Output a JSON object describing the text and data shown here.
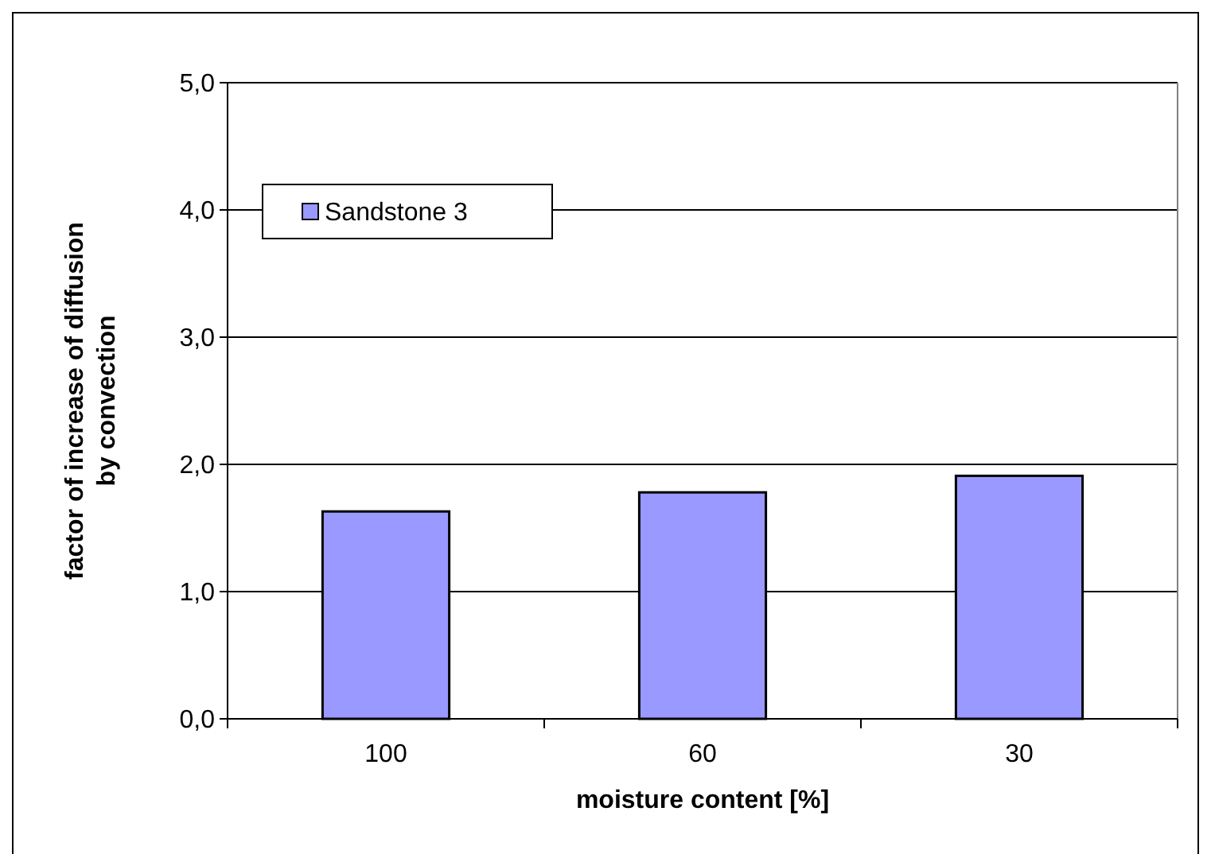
{
  "chart_data": {
    "type": "bar",
    "xlabel": "moisture content [%]",
    "ylabel": "factor of increase of diffusion by convection",
    "categories": [
      "100",
      "60",
      "30"
    ],
    "series": [
      {
        "name": "Sandstone 3",
        "color": "#9999ff",
        "values": [
          1.63,
          1.78,
          1.91
        ]
      }
    ],
    "ylim": [
      0,
      5
    ],
    "yticks": [
      {
        "value": 0,
        "label": "0,0"
      },
      {
        "value": 1,
        "label": "1,0"
      },
      {
        "value": 2,
        "label": "2,0"
      },
      {
        "value": 3,
        "label": "3,0"
      },
      {
        "value": 4,
        "label": "4,0"
      },
      {
        "value": 5,
        "label": "5,0"
      }
    ],
    "grid": "y",
    "legend": "top left"
  }
}
